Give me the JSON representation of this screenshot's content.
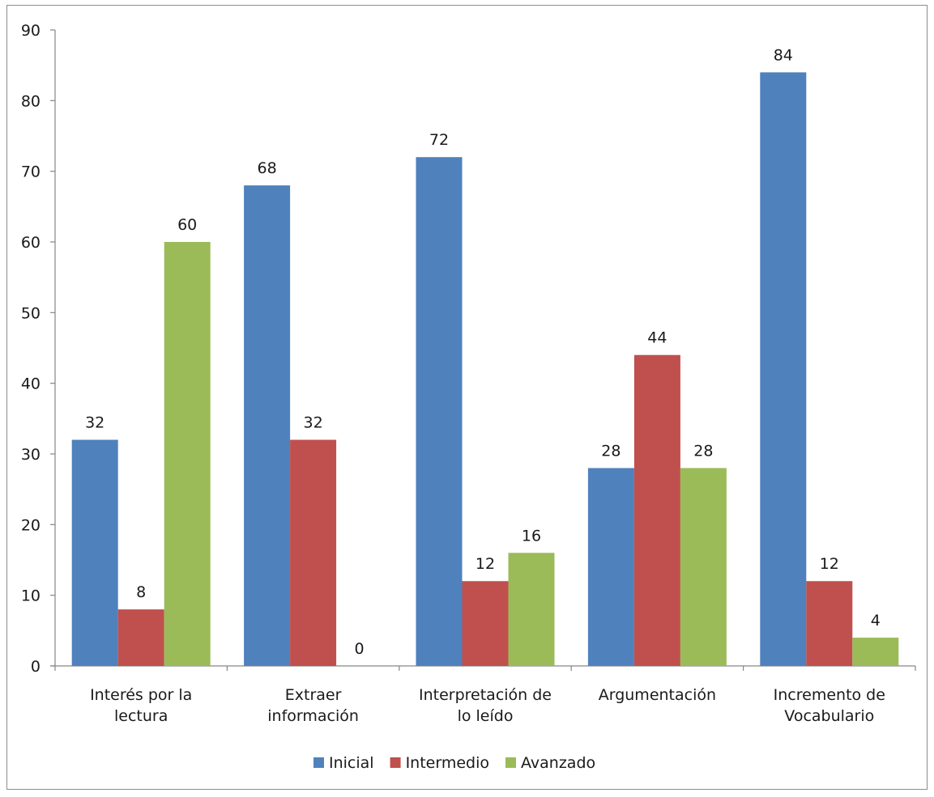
{
  "chart_data": {
    "type": "bar",
    "title": "",
    "xlabel": "",
    "ylabel": "",
    "ylim": [
      0,
      90
    ],
    "yticks": [
      0,
      10,
      20,
      30,
      40,
      50,
      60,
      70,
      80,
      90
    ],
    "grid": false,
    "legend_position": "bottom",
    "categories": [
      [
        "Interés por la",
        "lectura"
      ],
      [
        "Extraer",
        "información"
      ],
      [
        "Interpretación de",
        "lo leído"
      ],
      [
        "Argumentación"
      ],
      [
        "Incremento de",
        "Vocabulario"
      ]
    ],
    "series": [
      {
        "name": "Inicial",
        "color": "#4f81bd",
        "values": [
          32,
          68,
          72,
          28,
          84
        ]
      },
      {
        "name": "Intermedio",
        "color": "#c0504d",
        "values": [
          8,
          32,
          12,
          44,
          12
        ]
      },
      {
        "name": "Avanzado",
        "color": "#9bbb59",
        "values": [
          60,
          0,
          16,
          28,
          4
        ]
      }
    ]
  }
}
